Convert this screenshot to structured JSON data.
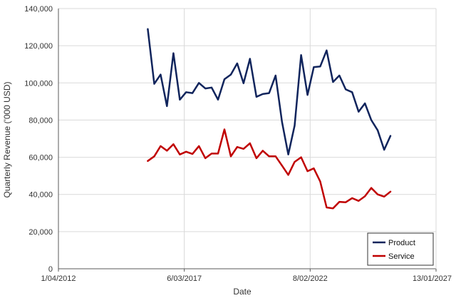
{
  "chart_data": {
    "type": "line",
    "title": "",
    "xlabel": "Date",
    "ylabel": "Quarterly Revenue ('000 USD)",
    "x_axis": {
      "kind": "date",
      "range": [
        "2012-04-01",
        "2027-01-13"
      ],
      "tick_labels": [
        "1/04/2012",
        "6/03/2017",
        "8/02/2022",
        "13/01/2027"
      ],
      "tick_dates": [
        "2012-04-01",
        "2017-03-06",
        "2022-02-08",
        "2027-01-13"
      ]
    },
    "y_axis": {
      "range": [
        0,
        140000
      ],
      "tick_values": [
        0,
        20000,
        40000,
        60000,
        80000,
        100000,
        120000,
        140000
      ],
      "tick_labels": [
        "0",
        "20,000",
        "40,000",
        "60,000",
        "80,000",
        "100,000",
        "120,000",
        "140,000"
      ]
    },
    "grid": {
      "horizontal": true,
      "vertical": true
    },
    "legend": {
      "position": "bottom-right"
    },
    "series": [
      {
        "name": "Product",
        "color": "#10245c",
        "points": [
          [
            "2015-10-01",
            129000
          ],
          [
            "2016-01-01",
            99500
          ],
          [
            "2016-04-01",
            104500
          ],
          [
            "2016-07-01",
            87500
          ],
          [
            "2016-10-01",
            116000
          ],
          [
            "2017-01-01",
            91000
          ],
          [
            "2017-04-01",
            95000
          ],
          [
            "2017-07-01",
            94500
          ],
          [
            "2017-10-01",
            100000
          ],
          [
            "2018-01-01",
            97000
          ],
          [
            "2018-04-01",
            97500
          ],
          [
            "2018-07-01",
            91000
          ],
          [
            "2018-10-01",
            102000
          ],
          [
            "2019-01-01",
            104500
          ],
          [
            "2019-04-01",
            110500
          ],
          [
            "2019-07-01",
            99800
          ],
          [
            "2019-10-01",
            113000
          ],
          [
            "2020-01-01",
            92500
          ],
          [
            "2020-04-01",
            94000
          ],
          [
            "2020-07-01",
            94500
          ],
          [
            "2020-10-01",
            104000
          ],
          [
            "2021-01-01",
            79000
          ],
          [
            "2021-04-01",
            61500
          ],
          [
            "2021-07-01",
            77000
          ],
          [
            "2021-10-01",
            115000
          ],
          [
            "2022-01-01",
            93500
          ],
          [
            "2022-04-01",
            108500
          ],
          [
            "2022-07-01",
            108800
          ],
          [
            "2022-10-01",
            117500
          ],
          [
            "2023-01-01",
            100500
          ],
          [
            "2023-04-01",
            104000
          ],
          [
            "2023-07-01",
            96500
          ],
          [
            "2023-10-01",
            95000
          ],
          [
            "2024-01-01",
            84500
          ],
          [
            "2024-04-01",
            89000
          ],
          [
            "2024-07-01",
            80000
          ],
          [
            "2024-10-01",
            74500
          ],
          [
            "2025-01-01",
            64000
          ],
          [
            "2025-04-01",
            71500
          ]
        ]
      },
      {
        "name": "Service",
        "color": "#c00000",
        "points": [
          [
            "2015-10-01",
            58000
          ],
          [
            "2016-01-01",
            60500
          ],
          [
            "2016-04-01",
            66000
          ],
          [
            "2016-07-01",
            63500
          ],
          [
            "2016-10-01",
            67000
          ],
          [
            "2017-01-01",
            61500
          ],
          [
            "2017-04-01",
            63000
          ],
          [
            "2017-07-01",
            61800
          ],
          [
            "2017-10-01",
            66000
          ],
          [
            "2018-01-01",
            59500
          ],
          [
            "2018-04-01",
            62000
          ],
          [
            "2018-07-01",
            62000
          ],
          [
            "2018-10-01",
            75000
          ],
          [
            "2019-01-01",
            60500
          ],
          [
            "2019-04-01",
            65500
          ],
          [
            "2019-07-01",
            64500
          ],
          [
            "2019-10-01",
            67500
          ],
          [
            "2020-01-01",
            59500
          ],
          [
            "2020-04-01",
            63500
          ],
          [
            "2020-07-01",
            60500
          ],
          [
            "2020-10-01",
            60500
          ],
          [
            "2021-01-01",
            55500
          ],
          [
            "2021-04-01",
            50500
          ],
          [
            "2021-07-01",
            57500
          ],
          [
            "2021-10-01",
            60000
          ],
          [
            "2022-01-01",
            52500
          ],
          [
            "2022-04-01",
            54000
          ],
          [
            "2022-07-01",
            47000
          ],
          [
            "2022-10-01",
            33000
          ],
          [
            "2023-01-01",
            32500
          ],
          [
            "2023-04-01",
            36000
          ],
          [
            "2023-07-01",
            35800
          ],
          [
            "2023-10-01",
            38000
          ],
          [
            "2024-01-01",
            36500
          ],
          [
            "2024-04-01",
            39000
          ],
          [
            "2024-07-01",
            43500
          ],
          [
            "2024-10-01",
            40000
          ],
          [
            "2025-01-01",
            38800
          ],
          [
            "2025-04-01",
            41500
          ]
        ]
      }
    ]
  }
}
